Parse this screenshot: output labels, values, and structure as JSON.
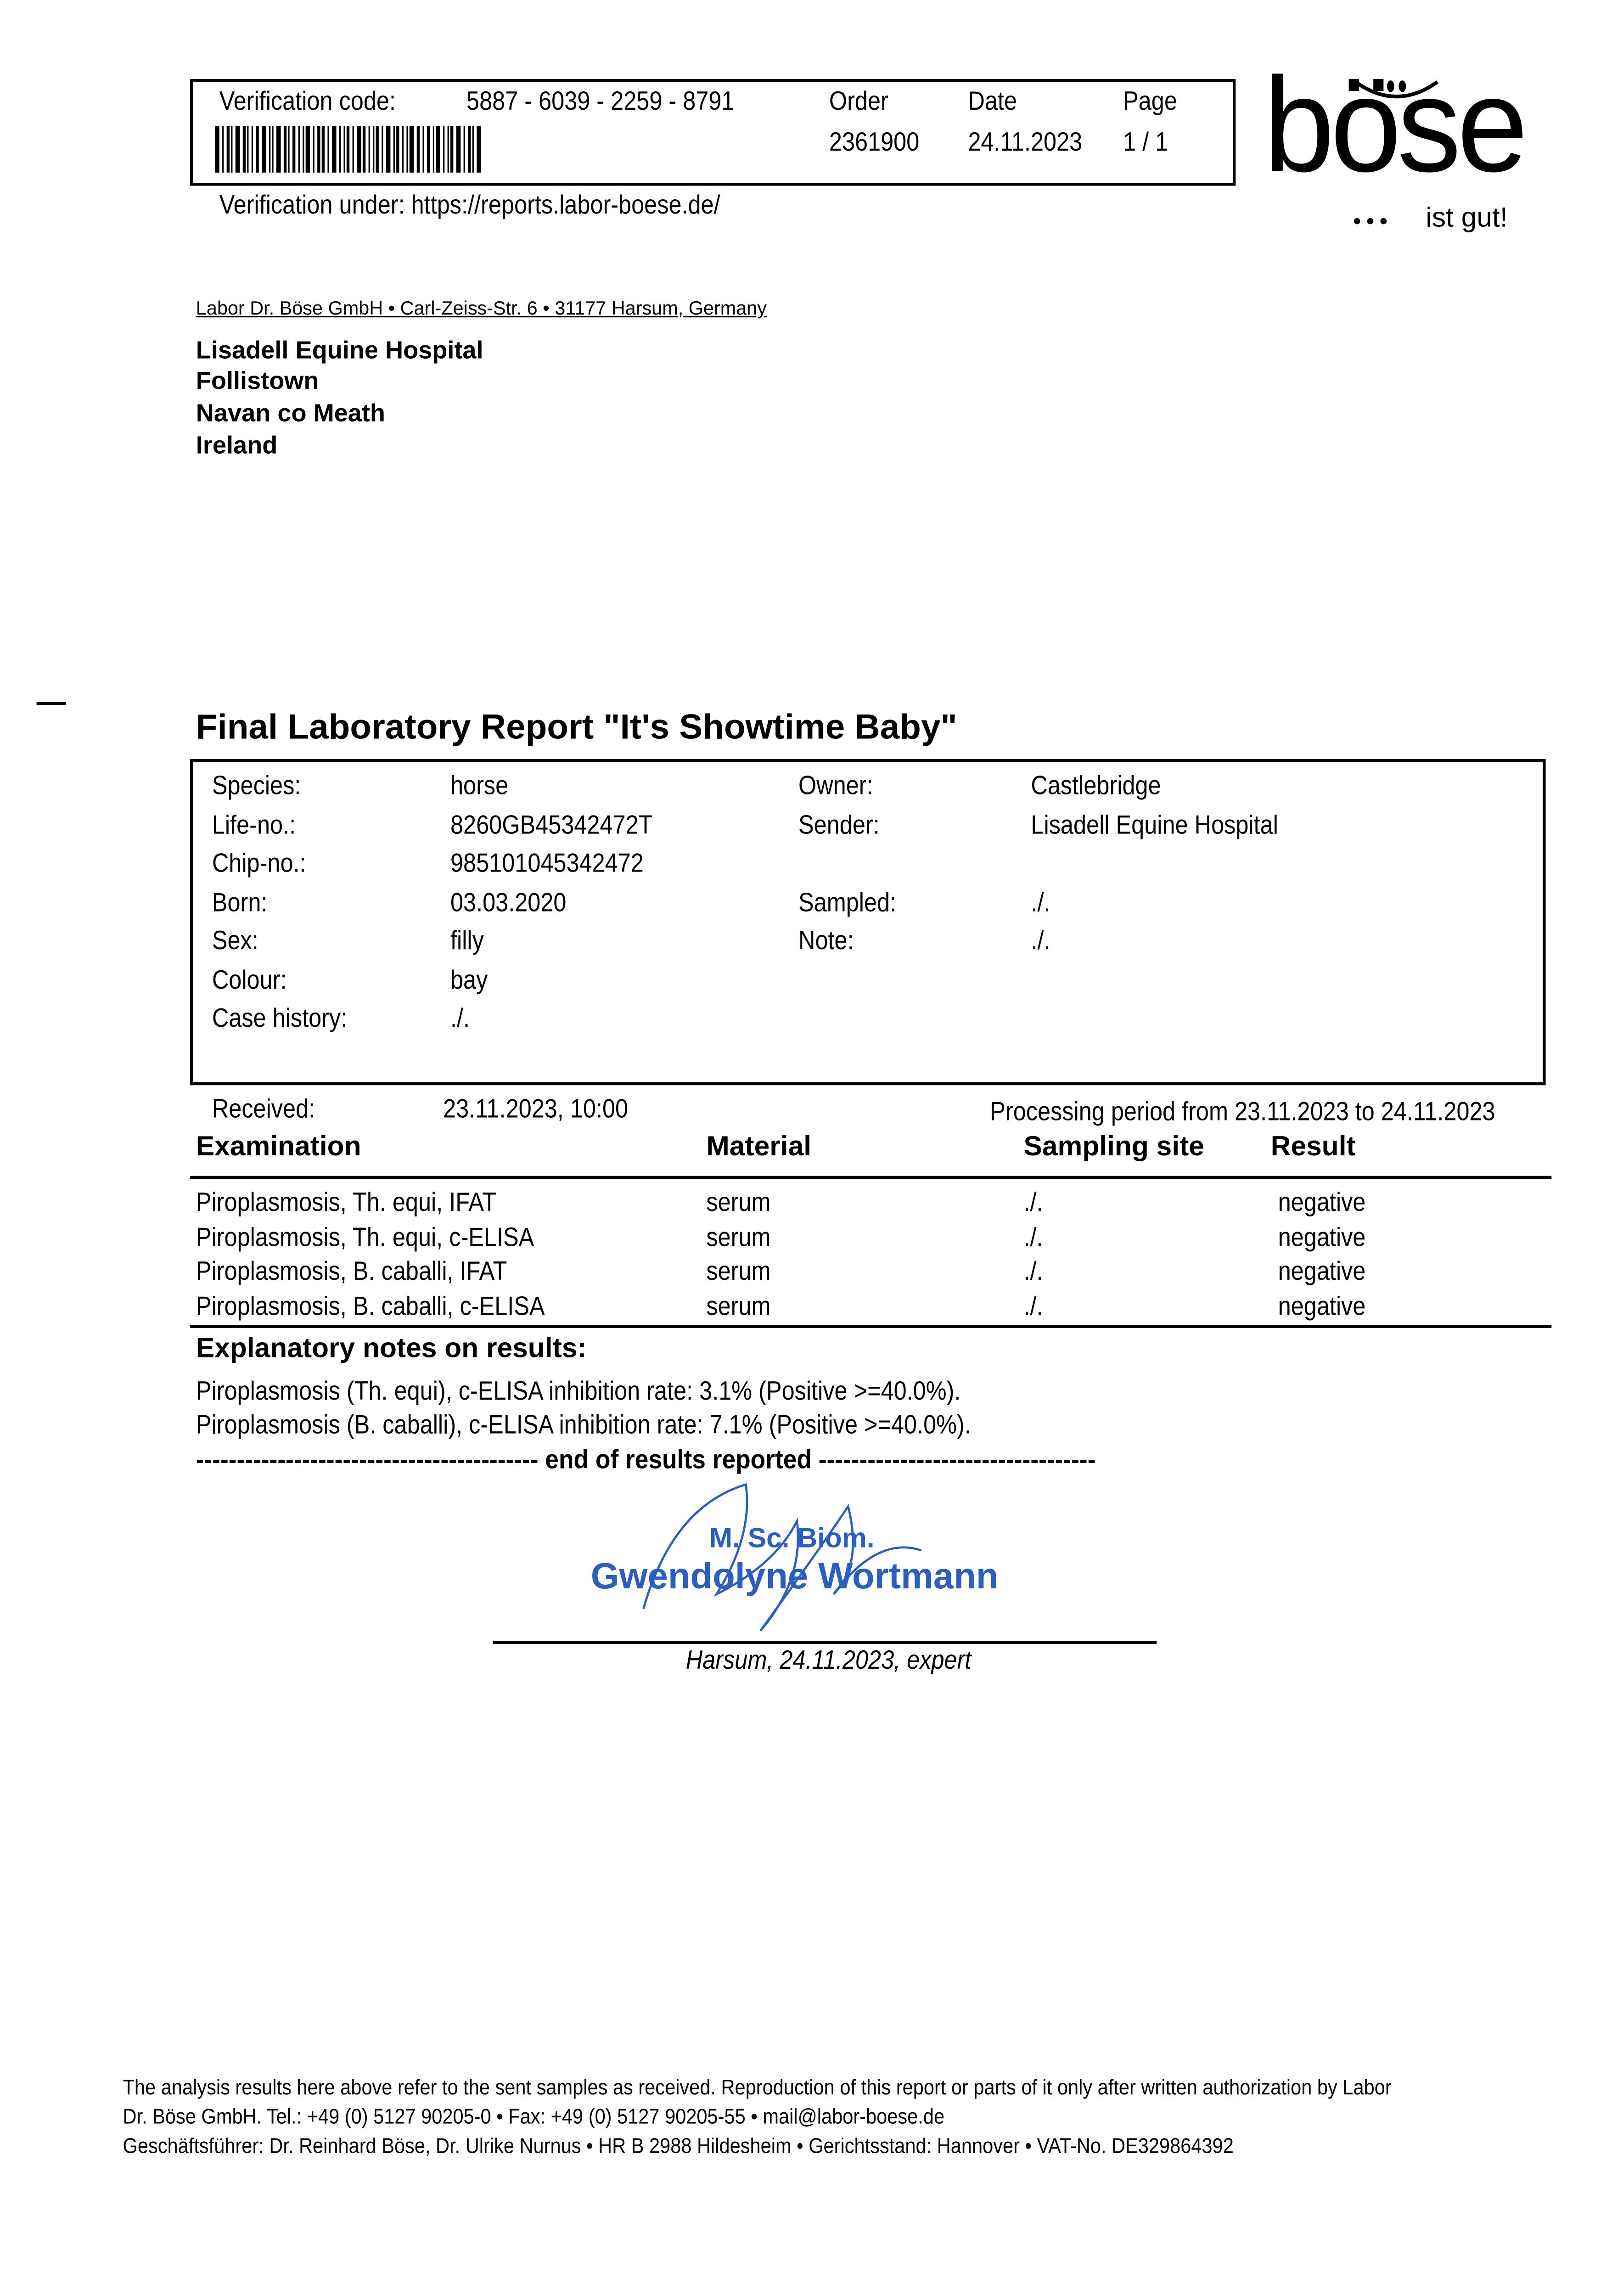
{
  "header": {
    "verification_label": "Verification code:",
    "verification_code": "5887 - 6039 - 2259 - 8791",
    "order_label": "Order",
    "order_value": "2361900",
    "date_label": "Date",
    "date_value": "24.11.2023",
    "page_label": "Page",
    "page_value": "1 / 1",
    "verification_url": "Verification under: https://reports.labor-boese.de/"
  },
  "logo": {
    "text": "böse",
    "slogan": "ist gut!"
  },
  "sender_line": "Labor Dr. Böse GmbH • Carl-Zeiss-Str. 6 • 31177 Harsum, Germany",
  "recipient": [
    "Lisadell Equine Hospital",
    "Follistown",
    "Navan co Meath",
    "Ireland"
  ],
  "title": "Final Laboratory Report \"It's Showtime Baby\"",
  "patient_left": [
    [
      "Species:",
      "horse"
    ],
    [
      "Life-no.:",
      "8260GB45342472T"
    ],
    [
      "Chip-no.:",
      "985101045342472"
    ],
    [
      "Born:",
      "03.03.2020"
    ],
    [
      "Sex:",
      "filly"
    ],
    [
      "Colour:",
      "bay"
    ],
    [
      "Case history:",
      "./."
    ]
  ],
  "patient_right": [
    [
      "Owner:",
      "Castlebridge"
    ],
    [
      "Sender:",
      "Lisadell Equine Hospital"
    ],
    [
      "",
      ""
    ],
    [
      "Sampled:",
      "./."
    ],
    [
      "Note:",
      "./."
    ]
  ],
  "received_label": "Received:",
  "received_value": "23.11.2023, 10:00",
  "processing": "Processing period from 23.11.2023 to 24.11.2023",
  "table": {
    "headers": [
      "Examination",
      "Material",
      "Sampling site",
      "Result"
    ],
    "rows": [
      [
        "Piroplasmosis, Th. equi, IFAT",
        "serum",
        "./.",
        "negative"
      ],
      [
        "Piroplasmosis, Th. equi, c-ELISA",
        "serum",
        "./.",
        "negative"
      ],
      [
        "Piroplasmosis, B. caballi, IFAT",
        "serum",
        "./.",
        "negative"
      ],
      [
        "Piroplasmosis, B. caballi, c-ELISA",
        "serum",
        "./.",
        "negative"
      ]
    ]
  },
  "notes": {
    "heading": "Explanatory notes on results:",
    "lines": [
      "Piroplasmosis (Th. equi), c-ELISA inhibition rate: 3.1% (Positive >=40.0%).",
      "Piroplasmosis (B. caballi), c-ELISA inhibition rate: 7.1% (Positive >=40.0%)."
    ],
    "end": "------------------------------------------ end of results reported ----------------------------------"
  },
  "signature": {
    "degree": "M. Sc. Biom.",
    "name": "Gwendolyne Wortmann",
    "place_date": "Harsum, 24.11.2023, expert",
    "stamp_color": "#2a5fbf"
  },
  "footer": [
    "The analysis results here above refer to the sent samples as received. Reproduction of this report or parts of it only after written authorization by Labor",
    "Dr. Böse GmbH. Tel.: +49 (0) 5127 90205-0 • Fax: +49 (0) 5127 90205-55 • mail@labor-boese.de",
    "Geschäftsführer: Dr. Reinhard Böse, Dr. Ulrike Nurnus • HR B 2988 Hildesheim • Gerichtsstand: Hannover • VAT-No. DE329864392"
  ]
}
